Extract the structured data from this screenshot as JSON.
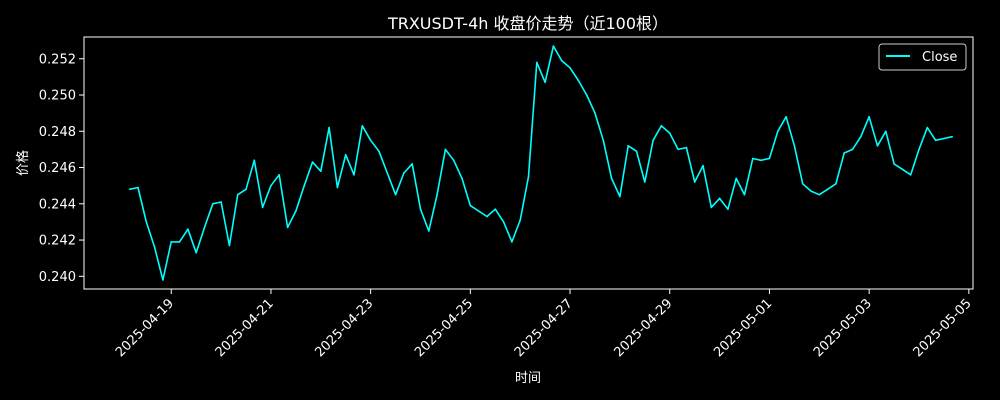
{
  "colors": {
    "background": "#000000",
    "foreground": "#ffffff",
    "line": "#00ffff"
  },
  "chart_data": {
    "type": "line",
    "title": "TRXUSDT-4h 收盘价走势（近100根）",
    "xlabel": "时间",
    "ylabel": "价格",
    "xlim": [
      "2025-04-17T06:00",
      "2025-05-05T02:00"
    ],
    "ylim": [
      0.2393,
      0.2532
    ],
    "x_ticks": [
      "2025-04-19",
      "2025-04-21",
      "2025-04-23",
      "2025-04-25",
      "2025-04-27",
      "2025-04-29",
      "2025-05-01",
      "2025-05-03",
      "2025-05-05"
    ],
    "y_ticks": [
      0.24,
      0.242,
      0.244,
      0.246,
      0.248,
      0.25,
      0.252
    ],
    "y_tick_labels": [
      "0.240",
      "0.242",
      "0.244",
      "0.246",
      "0.248",
      "0.250",
      "0.252"
    ],
    "grid": false,
    "legend_position": "top-right",
    "series": [
      {
        "name": "Close",
        "color": "#00ffff",
        "start": "2025-04-18T04:00",
        "interval_hours": 4,
        "values": [
          0.2448,
          0.2449,
          0.243,
          0.2416,
          0.2398,
          0.2419,
          0.2419,
          0.2426,
          0.2413,
          0.2427,
          0.244,
          0.2441,
          0.2417,
          0.2445,
          0.2448,
          0.2464,
          0.2438,
          0.245,
          0.2456,
          0.2427,
          0.2436,
          0.245,
          0.2463,
          0.2458,
          0.2482,
          0.2449,
          0.2467,
          0.2456,
          0.2483,
          0.2475,
          0.2469,
          0.2457,
          0.2445,
          0.2457,
          0.2462,
          0.2437,
          0.2425,
          0.2445,
          0.247,
          0.2464,
          0.2454,
          0.2439,
          0.2436,
          0.2433,
          0.2437,
          0.243,
          0.2419,
          0.2431,
          0.2455,
          0.2518,
          0.2507,
          0.2527,
          0.2519,
          0.2515,
          0.2508,
          0.25,
          0.249,
          0.2475,
          0.2454,
          0.2444,
          0.2472,
          0.2469,
          0.2452,
          0.2475,
          0.2483,
          0.2479,
          0.247,
          0.2471,
          0.2452,
          0.2461,
          0.2438,
          0.2443,
          0.2437,
          0.2454,
          0.2445,
          0.2465,
          0.2464,
          0.2465,
          0.248,
          0.2488,
          0.2472,
          0.2451,
          0.2447,
          0.2445,
          0.2448,
          0.2451,
          0.2468,
          0.247,
          0.2477,
          0.2488,
          0.2472,
          0.248,
          0.2462,
          0.2459,
          0.2456,
          0.247,
          0.2482,
          0.2475,
          0.2476,
          0.2477
        ]
      }
    ]
  }
}
